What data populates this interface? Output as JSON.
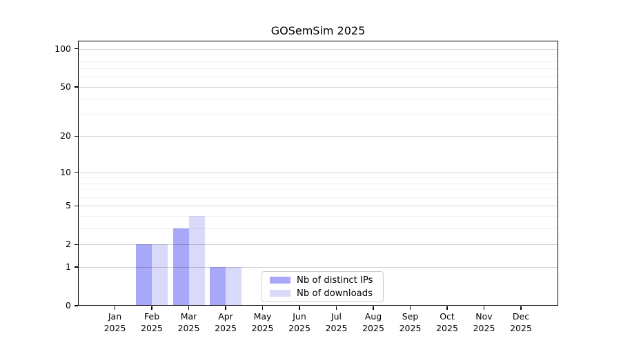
{
  "chart_data": {
    "type": "bar",
    "title": "GOSemSim 2025",
    "categories": [
      "Jan 2025",
      "Feb 2025",
      "Mar 2025",
      "Apr 2025",
      "May 2025",
      "Jun 2025",
      "Jul 2025",
      "Aug 2025",
      "Sep 2025",
      "Oct 2025",
      "Nov 2025",
      "Dec 2025"
    ],
    "series": [
      {
        "name": "Nb of distinct IPs",
        "color": "#a7a9f8",
        "values": [
          0,
          2,
          3,
          1,
          0,
          0,
          0,
          0,
          0,
          0,
          0,
          0
        ]
      },
      {
        "name": "Nb of downloads",
        "color": "#d9dafa",
        "values": [
          0,
          2,
          4,
          1,
          0,
          0,
          0,
          0,
          0,
          0,
          0,
          0
        ]
      }
    ],
    "yscale": "log1p",
    "yticks": [
      0,
      1,
      2,
      5,
      10,
      20,
      50,
      100
    ],
    "yticks_minor": [
      3,
      4,
      6,
      7,
      8,
      9,
      30,
      40,
      60,
      70,
      80,
      90
    ],
    "ylim": [
      0,
      115
    ],
    "xlabel": "",
    "ylabel": "",
    "grid": true,
    "legend_position": "lower center"
  },
  "colors": {
    "background": "#ffffff",
    "text": "#000000",
    "spine": "#000000",
    "grid_major": "rgba(0,0,0,0.18)",
    "grid_minor": "rgba(0,0,0,0.06)",
    "legend_border": "#cccccc"
  }
}
